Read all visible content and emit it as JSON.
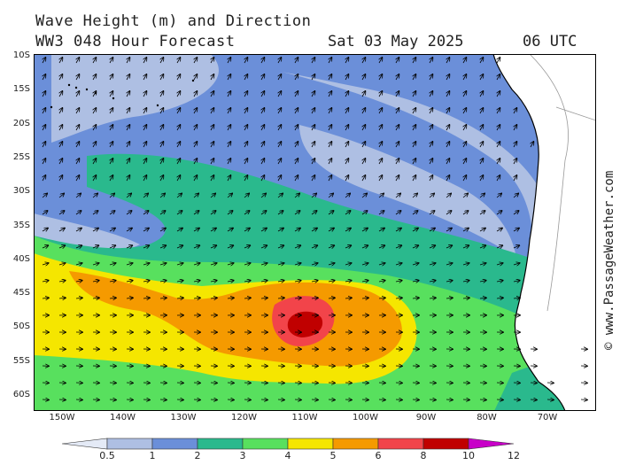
{
  "title": {
    "line1": "Wave Height (m) and Direction",
    "line2": "WW3 048 Hour Forecast",
    "date": "Sat 03 May 2025",
    "time": "06 UTC"
  },
  "lat_labels": [
    "10S",
    "15S",
    "20S",
    "25S",
    "30S",
    "35S",
    "40S",
    "45S",
    "50S",
    "55S",
    "60S"
  ],
  "lon_labels": [
    "150W",
    "140W",
    "130W",
    "120W",
    "110W",
    "100W",
    "90W",
    "80W",
    "70W"
  ],
  "credit": "© www.PassageWeather.com",
  "legend": {
    "ticks": [
      "0.5",
      "1",
      "2",
      "3",
      "4",
      "5",
      "6",
      "8",
      "10",
      "12"
    ],
    "colors": [
      "#e4eaf6",
      "#aebfe3",
      "#6b8fd9",
      "#2ab98d",
      "#58e05e",
      "#f5e600",
      "#f59a00",
      "#f2444a",
      "#c00000",
      "#c800c8"
    ]
  },
  "colors": {
    "land": "#ffffff",
    "coast": "#000000"
  }
}
